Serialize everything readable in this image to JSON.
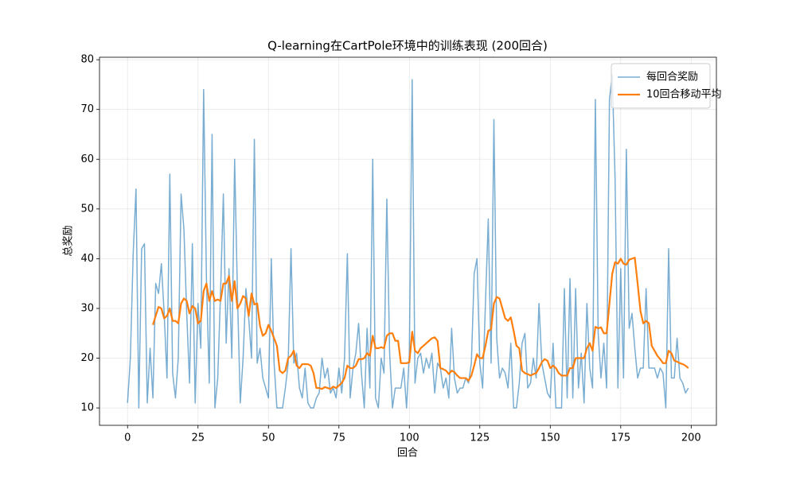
{
  "chart_data": {
    "type": "line",
    "title": "Q-learning在CartPole环境中的训练表现 (200回合)",
    "xlabel": "回合",
    "ylabel": "总奖励",
    "x": [
      0,
      1,
      2,
      3,
      4,
      5,
      6,
      7,
      8,
      9,
      10,
      11,
      12,
      13,
      14,
      15,
      16,
      17,
      18,
      19,
      20,
      21,
      22,
      23,
      24,
      25,
      26,
      27,
      28,
      29,
      30,
      31,
      32,
      33,
      34,
      35,
      36,
      37,
      38,
      39,
      40,
      41,
      42,
      43,
      44,
      45,
      46,
      47,
      48,
      49,
      50,
      51,
      52,
      53,
      54,
      55,
      56,
      57,
      58,
      59,
      60,
      61,
      62,
      63,
      64,
      65,
      66,
      67,
      68,
      69,
      70,
      71,
      72,
      73,
      74,
      75,
      76,
      77,
      78,
      79,
      80,
      81,
      82,
      83,
      84,
      85,
      86,
      87,
      88,
      89,
      90,
      91,
      92,
      93,
      94,
      95,
      96,
      97,
      98,
      99,
      100,
      101,
      102,
      103,
      104,
      105,
      106,
      107,
      108,
      109,
      110,
      111,
      112,
      113,
      114,
      115,
      116,
      117,
      118,
      119,
      120,
      121,
      122,
      123,
      124,
      125,
      126,
      127,
      128,
      129,
      130,
      131,
      132,
      133,
      134,
      135,
      136,
      137,
      138,
      139,
      140,
      141,
      142,
      143,
      144,
      145,
      146,
      147,
      148,
      149,
      150,
      151,
      152,
      153,
      154,
      155,
      156,
      157,
      158,
      159,
      160,
      161,
      162,
      163,
      164,
      165,
      166,
      167,
      168,
      169,
      170,
      171,
      172,
      173,
      174,
      175,
      176,
      177,
      178,
      179,
      180,
      181,
      182,
      183,
      184,
      185,
      186,
      187,
      188,
      189,
      190,
      191,
      192,
      193,
      194,
      195,
      196,
      197,
      198,
      199
    ],
    "series": [
      {
        "name": "每回合奖励",
        "color": "#1f77b4",
        "opacity": 0.6,
        "width": 1.5,
        "values": [
          11,
          20,
          41,
          54,
          10,
          42,
          43,
          11,
          22,
          12,
          35,
          33,
          39,
          29,
          16,
          57,
          17,
          12,
          20,
          53,
          46,
          29,
          15,
          43,
          11,
          31,
          22,
          74,
          36,
          15,
          65,
          10,
          16,
          33,
          53,
          23,
          38,
          20,
          60,
          33,
          11,
          20,
          34,
          28,
          20,
          64,
          19,
          22,
          16,
          14,
          12,
          40,
          19,
          10,
          10,
          10,
          14,
          19,
          42,
          19,
          21,
          14,
          12,
          18,
          11,
          10,
          10,
          12,
          13,
          20,
          16,
          18,
          13,
          14,
          12,
          18,
          13,
          20,
          41,
          12,
          18,
          21,
          27,
          17,
          10,
          26,
          14,
          60,
          12,
          10,
          20,
          17,
          52,
          21,
          10,
          14,
          14,
          14,
          18,
          10,
          21,
          76,
          15,
          20,
          21,
          17,
          20,
          18,
          21,
          13,
          19,
          18,
          14,
          16,
          12,
          26,
          16,
          13,
          14,
          14,
          16,
          15,
          19,
          37,
          40,
          19,
          14,
          31,
          48,
          19,
          68,
          24,
          16,
          18,
          17,
          14,
          23,
          10,
          10,
          15,
          23,
          25,
          14,
          15,
          20,
          16,
          31,
          19,
          16,
          13,
          12,
          23,
          10,
          10,
          10,
          34,
          12,
          36,
          12,
          34,
          14,
          21,
          11,
          31,
          18,
          14,
          72,
          25,
          16,
          23,
          14,
          72,
          77,
          56,
          14,
          38,
          16,
          62,
          26,
          29,
          22,
          16,
          18,
          18,
          34,
          18,
          18,
          18,
          16,
          18,
          17,
          10,
          42,
          16,
          16,
          24,
          16,
          15,
          13,
          14
        ]
      },
      {
        "name": "10回合移动平均",
        "color": "#ff7f0e",
        "opacity": 1,
        "width": 2.2,
        "values": [
          null,
          null,
          null,
          null,
          null,
          null,
          null,
          null,
          null,
          26.7,
          28.5,
          30.3,
          30,
          28,
          28.5,
          30,
          27.5,
          27.5,
          27,
          31,
          32,
          31.5,
          29,
          30.5,
          30,
          27,
          27.5,
          33.5,
          35,
          31.5,
          33.5,
          31.5,
          31.8,
          31.5,
          35,
          35,
          36.5,
          31.5,
          35.5,
          30,
          31,
          32.5,
          32,
          28.5,
          33,
          30.8,
          31,
          26.5,
          24.5,
          25,
          26.7,
          25.5,
          24,
          22.5,
          17.5,
          17,
          17.5,
          20,
          20.5,
          21.5,
          18.5,
          18,
          18.8,
          18.8,
          18.8,
          18.5,
          17,
          14,
          14,
          13.8,
          14.2,
          14,
          13.8,
          14.3,
          14,
          14.5,
          15,
          16,
          18.5,
          18,
          18,
          18.5,
          19.8,
          19.8,
          20,
          21,
          20.5,
          24.5,
          22,
          22,
          22.2,
          22,
          24.5,
          25,
          25,
          23.5,
          23.5,
          19,
          19,
          19,
          19.2,
          25.3,
          21.5,
          21,
          22,
          22.5,
          23,
          23.5,
          24,
          24.2,
          23.5,
          18,
          17.8,
          17.5,
          16.8,
          17.5,
          17.2,
          16.5,
          16,
          16,
          16,
          15.5,
          16.5,
          18.5,
          20.8,
          20,
          20,
          22.5,
          25.5,
          25.8,
          31,
          32.3,
          32,
          30,
          28,
          27.5,
          28.2,
          25.5,
          22.5,
          22,
          17.5,
          17,
          16.8,
          16.5,
          16.8,
          17,
          18,
          19.2,
          19.8,
          19.5,
          18,
          18.5,
          18,
          17,
          16.5,
          16.5,
          16.5,
          18,
          18,
          20,
          20,
          20,
          20,
          22,
          23,
          21.5,
          26.3,
          26,
          26.2,
          25,
          25,
          31,
          37,
          39.3,
          39,
          40,
          39,
          38.8,
          39.8,
          40,
          40.2,
          35,
          29.5,
          27,
          27.5,
          27,
          22.5,
          21.5,
          20.5,
          19.8,
          19,
          19,
          21.5,
          21,
          19.5,
          19.3,
          19,
          18.8,
          18.5,
          18
        ]
      }
    ],
    "xlim": [
      -9.95,
      208.95
    ],
    "ylim": [
      6.5,
      80.5
    ],
    "xticks": [
      0,
      25,
      50,
      75,
      100,
      125,
      150,
      175,
      200
    ],
    "yticks": [
      10,
      20,
      30,
      40,
      50,
      60,
      70,
      80
    ],
    "grid": true,
    "legend": "upper right"
  }
}
